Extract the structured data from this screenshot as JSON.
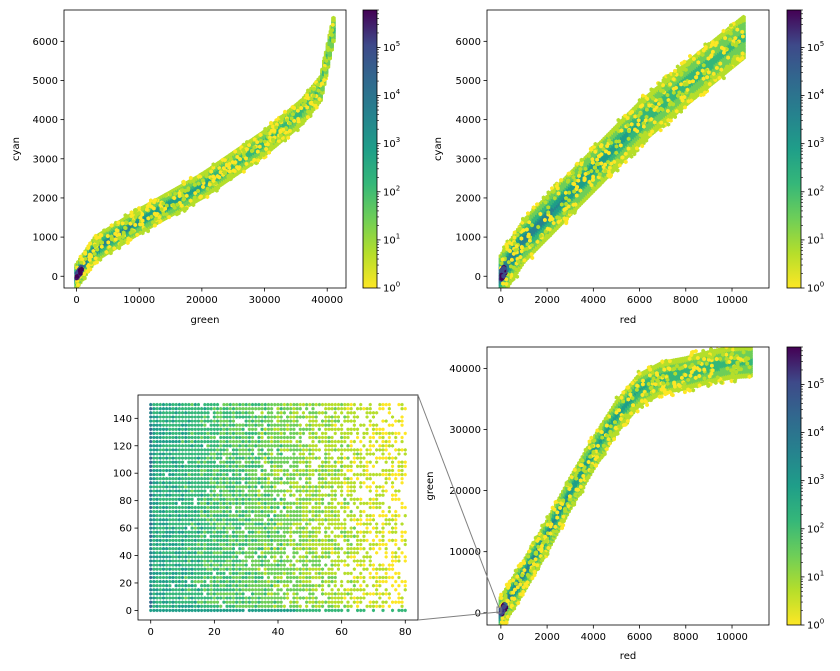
{
  "chart_data": [
    {
      "type": "hexbin",
      "name": "green-vs-cyan",
      "xlabel": "green",
      "ylabel": "cyan",
      "xlim": [
        -2000,
        43000
      ],
      "ylim": [
        -300,
        6800
      ],
      "xticks": [
        0,
        10000,
        20000,
        30000,
        40000
      ],
      "xtick_labels": [
        "0",
        "10000",
        "20000",
        "30000",
        "40000"
      ],
      "yticks": [
        0,
        1000,
        2000,
        3000,
        4000,
        5000,
        6000
      ],
      "ytick_labels": [
        "0",
        "1000",
        "2000",
        "3000",
        "4000",
        "5000",
        "6000"
      ],
      "trend": [
        [
          0,
          0
        ],
        [
          3000,
          700
        ],
        [
          10000,
          1400
        ],
        [
          20000,
          2300
        ],
        [
          30000,
          3400
        ],
        [
          36000,
          4200
        ],
        [
          39000,
          4800
        ],
        [
          41000,
          6300
        ]
      ],
      "spread_y": 180,
      "scatter_spread_y": 380,
      "colorbar": {
        "scale": "log",
        "ticks": [
          1,
          10,
          100,
          1000,
          10000,
          100000
        ],
        "tick_bases": [
          "10",
          "10",
          "10",
          "10",
          "10",
          "10"
        ],
        "tick_exponents": [
          "0",
          "1",
          "2",
          "3",
          "4",
          "5"
        ],
        "max": 600000
      }
    },
    {
      "type": "hexbin",
      "name": "red-vs-cyan",
      "xlabel": "red",
      "ylabel": "cyan",
      "xlim": [
        -600,
        11600
      ],
      "ylim": [
        -300,
        6800
      ],
      "xticks": [
        0,
        2000,
        4000,
        6000,
        8000,
        10000
      ],
      "xtick_labels": [
        "0",
        "2000",
        "4000",
        "6000",
        "8000",
        "10000"
      ],
      "yticks": [
        0,
        1000,
        2000,
        3000,
        4000,
        5000,
        6000
      ],
      "ytick_labels": [
        "0",
        "1000",
        "2000",
        "3000",
        "4000",
        "5000",
        "6000"
      ],
      "trend": [
        [
          0,
          0
        ],
        [
          1000,
          900
        ],
        [
          2000,
          1500
        ],
        [
          4000,
          2700
        ],
        [
          6000,
          3900
        ],
        [
          8000,
          4900
        ],
        [
          10500,
          6100
        ]
      ],
      "spread_y": 320,
      "scatter_spread_y": 650,
      "colorbar": {
        "scale": "log",
        "ticks": [
          1,
          10,
          100,
          1000,
          10000,
          100000
        ],
        "tick_bases": [
          "10",
          "10",
          "10",
          "10",
          "10",
          "10"
        ],
        "tick_exponents": [
          "0",
          "1",
          "2",
          "3",
          "4",
          "5"
        ],
        "max": 600000
      }
    },
    {
      "type": "hexbin",
      "name": "red-vs-green",
      "xlabel": "red",
      "ylabel": "green",
      "xlim": [
        -600,
        11600
      ],
      "ylim": [
        -2000,
        43500
      ],
      "xticks": [
        0,
        2000,
        4000,
        6000,
        8000,
        10000
      ],
      "xtick_labels": [
        "0",
        "2000",
        "4000",
        "6000",
        "8000",
        "10000"
      ],
      "yticks": [
        0,
        10000,
        20000,
        30000,
        40000
      ],
      "ytick_labels": [
        "0",
        "10000",
        "20000",
        "30000",
        "40000"
      ],
      "trend": [
        [
          0,
          0
        ],
        [
          1000,
          6000
        ],
        [
          2000,
          12500
        ],
        [
          3000,
          19500
        ],
        [
          4000,
          26000
        ],
        [
          5000,
          32000
        ],
        [
          6000,
          36500
        ],
        [
          7000,
          38500
        ],
        [
          8000,
          39200
        ],
        [
          9000,
          40200
        ],
        [
          10000,
          41000
        ],
        [
          10800,
          41200
        ]
      ],
      "spread_y": 1500,
      "scatter_spread_y": 3200,
      "colorbar": {
        "scale": "log",
        "ticks": [
          1,
          10,
          100,
          1000,
          10000,
          100000
        ],
        "tick_bases": [
          "10",
          "10",
          "10",
          "10",
          "10",
          "10"
        ],
        "tick_exponents": [
          "0",
          "1",
          "2",
          "3",
          "4",
          "5"
        ],
        "max": 600000
      }
    },
    {
      "type": "hexbin",
      "name": "zoom-inset",
      "description_of": "zoomed region near origin of red-vs-green",
      "xlim": [
        -4,
        84
      ],
      "ylim": [
        -7,
        157
      ],
      "xticks": [
        0,
        20,
        40,
        60,
        80
      ],
      "xtick_labels": [
        "0",
        "20",
        "40",
        "60",
        "80"
      ],
      "yticks": [
        0,
        20,
        40,
        60,
        80,
        100,
        120,
        140
      ],
      "ytick_labels": [
        "0",
        "20",
        "40",
        "60",
        "80",
        "100",
        "120",
        "140"
      ],
      "grid_x": [
        0,
        80
      ],
      "grid_y": [
        0,
        150
      ]
    }
  ]
}
